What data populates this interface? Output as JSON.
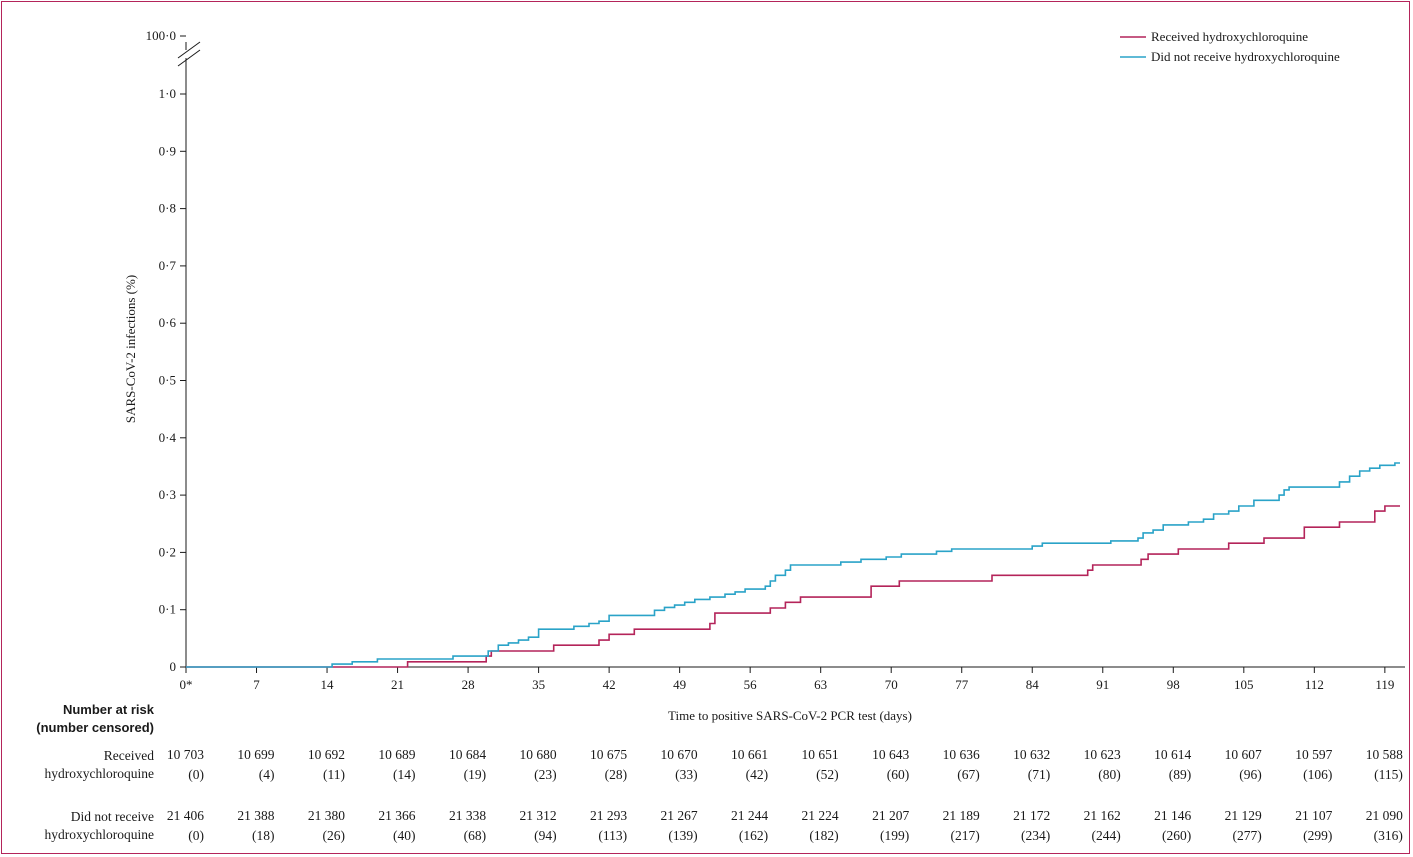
{
  "chart_data": {
    "type": "line",
    "xlabel": "Time to positive SARS-CoV-2 PCR test (days)",
    "ylabel": "SARS-CoV-2 infections (%)",
    "xlim": [
      0,
      121
    ],
    "ylim": [
      0,
      1.0
    ],
    "y_break_label": "100·0",
    "x_ticks": [
      {
        "value": 0,
        "label": "0*"
      },
      {
        "value": 7,
        "label": "7"
      },
      {
        "value": 14,
        "label": "14"
      },
      {
        "value": 21,
        "label": "21"
      },
      {
        "value": 28,
        "label": "28"
      },
      {
        "value": 35,
        "label": "35"
      },
      {
        "value": 42,
        "label": "42"
      },
      {
        "value": 49,
        "label": "49"
      },
      {
        "value": 56,
        "label": "56"
      },
      {
        "value": 63,
        "label": "63"
      },
      {
        "value": 70,
        "label": "70"
      },
      {
        "value": 77,
        "label": "77"
      },
      {
        "value": 84,
        "label": "84"
      },
      {
        "value": 91,
        "label": "91"
      },
      {
        "value": 98,
        "label": "98"
      },
      {
        "value": 105,
        "label": "105"
      },
      {
        "value": 112,
        "label": "112"
      },
      {
        "value": 119,
        "label": "119"
      }
    ],
    "y_ticks": [
      {
        "value": 0,
        "label": "0"
      },
      {
        "value": 0.1,
        "label": "0·1"
      },
      {
        "value": 0.2,
        "label": "0·2"
      },
      {
        "value": 0.3,
        "label": "0·3"
      },
      {
        "value": 0.4,
        "label": "0·4"
      },
      {
        "value": 0.5,
        "label": "0·5"
      },
      {
        "value": 0.6,
        "label": "0·6"
      },
      {
        "value": 0.7,
        "label": "0·7"
      },
      {
        "value": 0.8,
        "label": "0·8"
      },
      {
        "value": 0.9,
        "label": "0·9"
      },
      {
        "value": 1.0,
        "label": "1·0"
      }
    ],
    "legend_position": "top-right",
    "series": [
      {
        "name": "Received hydroxychloroquine",
        "color": "#b4245a",
        "step": true,
        "points": [
          [
            0,
            0
          ],
          [
            20,
            0
          ],
          [
            22,
            0.009
          ],
          [
            29,
            0.009
          ],
          [
            29.8,
            0.019
          ],
          [
            30.3,
            0.028
          ],
          [
            36,
            0.028
          ],
          [
            36.5,
            0.038
          ],
          [
            40,
            0.038
          ],
          [
            41,
            0.047
          ],
          [
            42,
            0.057
          ],
          [
            44.5,
            0.066
          ],
          [
            51.5,
            0.066
          ],
          [
            52,
            0.076
          ],
          [
            52.5,
            0.094
          ],
          [
            57.5,
            0.094
          ],
          [
            58,
            0.103
          ],
          [
            59.5,
            0.113
          ],
          [
            61,
            0.122
          ],
          [
            67.5,
            0.122
          ],
          [
            68,
            0.141
          ],
          [
            70,
            0.141
          ],
          [
            70.8,
            0.15
          ],
          [
            79.5,
            0.15
          ],
          [
            80,
            0.16
          ],
          [
            88,
            0.16
          ],
          [
            89.5,
            0.169
          ],
          [
            90,
            0.178
          ],
          [
            94.5,
            0.178
          ],
          [
            94.8,
            0.188
          ],
          [
            95.5,
            0.197
          ],
          [
            98,
            0.197
          ],
          [
            98.5,
            0.206
          ],
          [
            103,
            0.206
          ],
          [
            103.5,
            0.216
          ],
          [
            106.5,
            0.216
          ],
          [
            107,
            0.225
          ],
          [
            110.5,
            0.225
          ],
          [
            111,
            0.244
          ],
          [
            114,
            0.244
          ],
          [
            114.5,
            0.253
          ],
          [
            117.5,
            0.253
          ],
          [
            118,
            0.272
          ],
          [
            119,
            0.281
          ],
          [
            120.5,
            0.281
          ]
        ]
      },
      {
        "name": "Did not receive hydroxychloroquine",
        "color": "#2aa3c8",
        "step": true,
        "points": [
          [
            0,
            0
          ],
          [
            14.3,
            0
          ],
          [
            14.5,
            0.005
          ],
          [
            16.5,
            0.009
          ],
          [
            19,
            0.014
          ],
          [
            26,
            0.014
          ],
          [
            26.5,
            0.019
          ],
          [
            29.5,
            0.019
          ],
          [
            30,
            0.028
          ],
          [
            31,
            0.038
          ],
          [
            32,
            0.042
          ],
          [
            33,
            0.047
          ],
          [
            34,
            0.052
          ],
          [
            35,
            0.066
          ],
          [
            38,
            0.066
          ],
          [
            38.5,
            0.071
          ],
          [
            40,
            0.076
          ],
          [
            41,
            0.08
          ],
          [
            42,
            0.09
          ],
          [
            46,
            0.09
          ],
          [
            46.5,
            0.099
          ],
          [
            47.5,
            0.104
          ],
          [
            48.5,
            0.108
          ],
          [
            49.5,
            0.113
          ],
          [
            50.5,
            0.118
          ],
          [
            52,
            0.122
          ],
          [
            53.5,
            0.127
          ],
          [
            54.5,
            0.131
          ],
          [
            55.5,
            0.136
          ],
          [
            57.5,
            0.141
          ],
          [
            58,
            0.15
          ],
          [
            58.5,
            0.16
          ],
          [
            59.5,
            0.169
          ],
          [
            60,
            0.178
          ],
          [
            64.5,
            0.178
          ],
          [
            65,
            0.183
          ],
          [
            67,
            0.188
          ],
          [
            69.5,
            0.192
          ],
          [
            71,
            0.197
          ],
          [
            74.5,
            0.202
          ],
          [
            76,
            0.206
          ],
          [
            83.5,
            0.206
          ],
          [
            84,
            0.211
          ],
          [
            85,
            0.216
          ],
          [
            91,
            0.216
          ],
          [
            91.8,
            0.22
          ],
          [
            94.5,
            0.225
          ],
          [
            95,
            0.234
          ],
          [
            96,
            0.239
          ],
          [
            97,
            0.248
          ],
          [
            99.5,
            0.253
          ],
          [
            101,
            0.258
          ],
          [
            102,
            0.267
          ],
          [
            103.5,
            0.272
          ],
          [
            104.5,
            0.281
          ],
          [
            106,
            0.291
          ],
          [
            108.5,
            0.3
          ],
          [
            109,
            0.309
          ],
          [
            109.5,
            0.314
          ],
          [
            114,
            0.314
          ],
          [
            114.5,
            0.323
          ],
          [
            115.5,
            0.333
          ],
          [
            116.5,
            0.342
          ],
          [
            117.5,
            0.347
          ],
          [
            118.5,
            0.352
          ],
          [
            120,
            0.356
          ],
          [
            120.5,
            0.356
          ]
        ]
      }
    ]
  },
  "risk_table": {
    "title_line1": "Number at risk",
    "title_line2": "(number censored)",
    "rows": [
      {
        "label_line1": "Received",
        "label_line2": "hydroxychloroquine",
        "at_risk": [
          "10 703",
          "10 699",
          "10 692",
          "10 689",
          "10 684",
          "10 680",
          "10 675",
          "10 670",
          "10 661",
          "10 651",
          "10 643",
          "10 636",
          "10 632",
          "10 623",
          "10 614",
          "10 607",
          "10 597",
          "10 588"
        ],
        "censored": [
          "(0)",
          "(4)",
          "(11)",
          "(14)",
          "(19)",
          "(23)",
          "(28)",
          "(33)",
          "(42)",
          "(52)",
          "(60)",
          "(67)",
          "(71)",
          "(80)",
          "(89)",
          "(96)",
          "(106)",
          "(115)"
        ]
      },
      {
        "label_line1": "Did not receive",
        "label_line2": "hydroxychloroquine",
        "at_risk": [
          "21 406",
          "21 388",
          "21 380",
          "21 366",
          "21 338",
          "21 312",
          "21 293",
          "21 267",
          "21 244",
          "21 224",
          "21 207",
          "21 189",
          "21 172",
          "21 162",
          "21 146",
          "21 129",
          "21 107",
          "21 090"
        ],
        "censored": [
          "(0)",
          "(18)",
          "(26)",
          "(40)",
          "(68)",
          "(94)",
          "(113)",
          "(139)",
          "(162)",
          "(182)",
          "(199)",
          "(217)",
          "(234)",
          "(244)",
          "(260)",
          "(277)",
          "(299)",
          "(316)"
        ]
      }
    ]
  }
}
